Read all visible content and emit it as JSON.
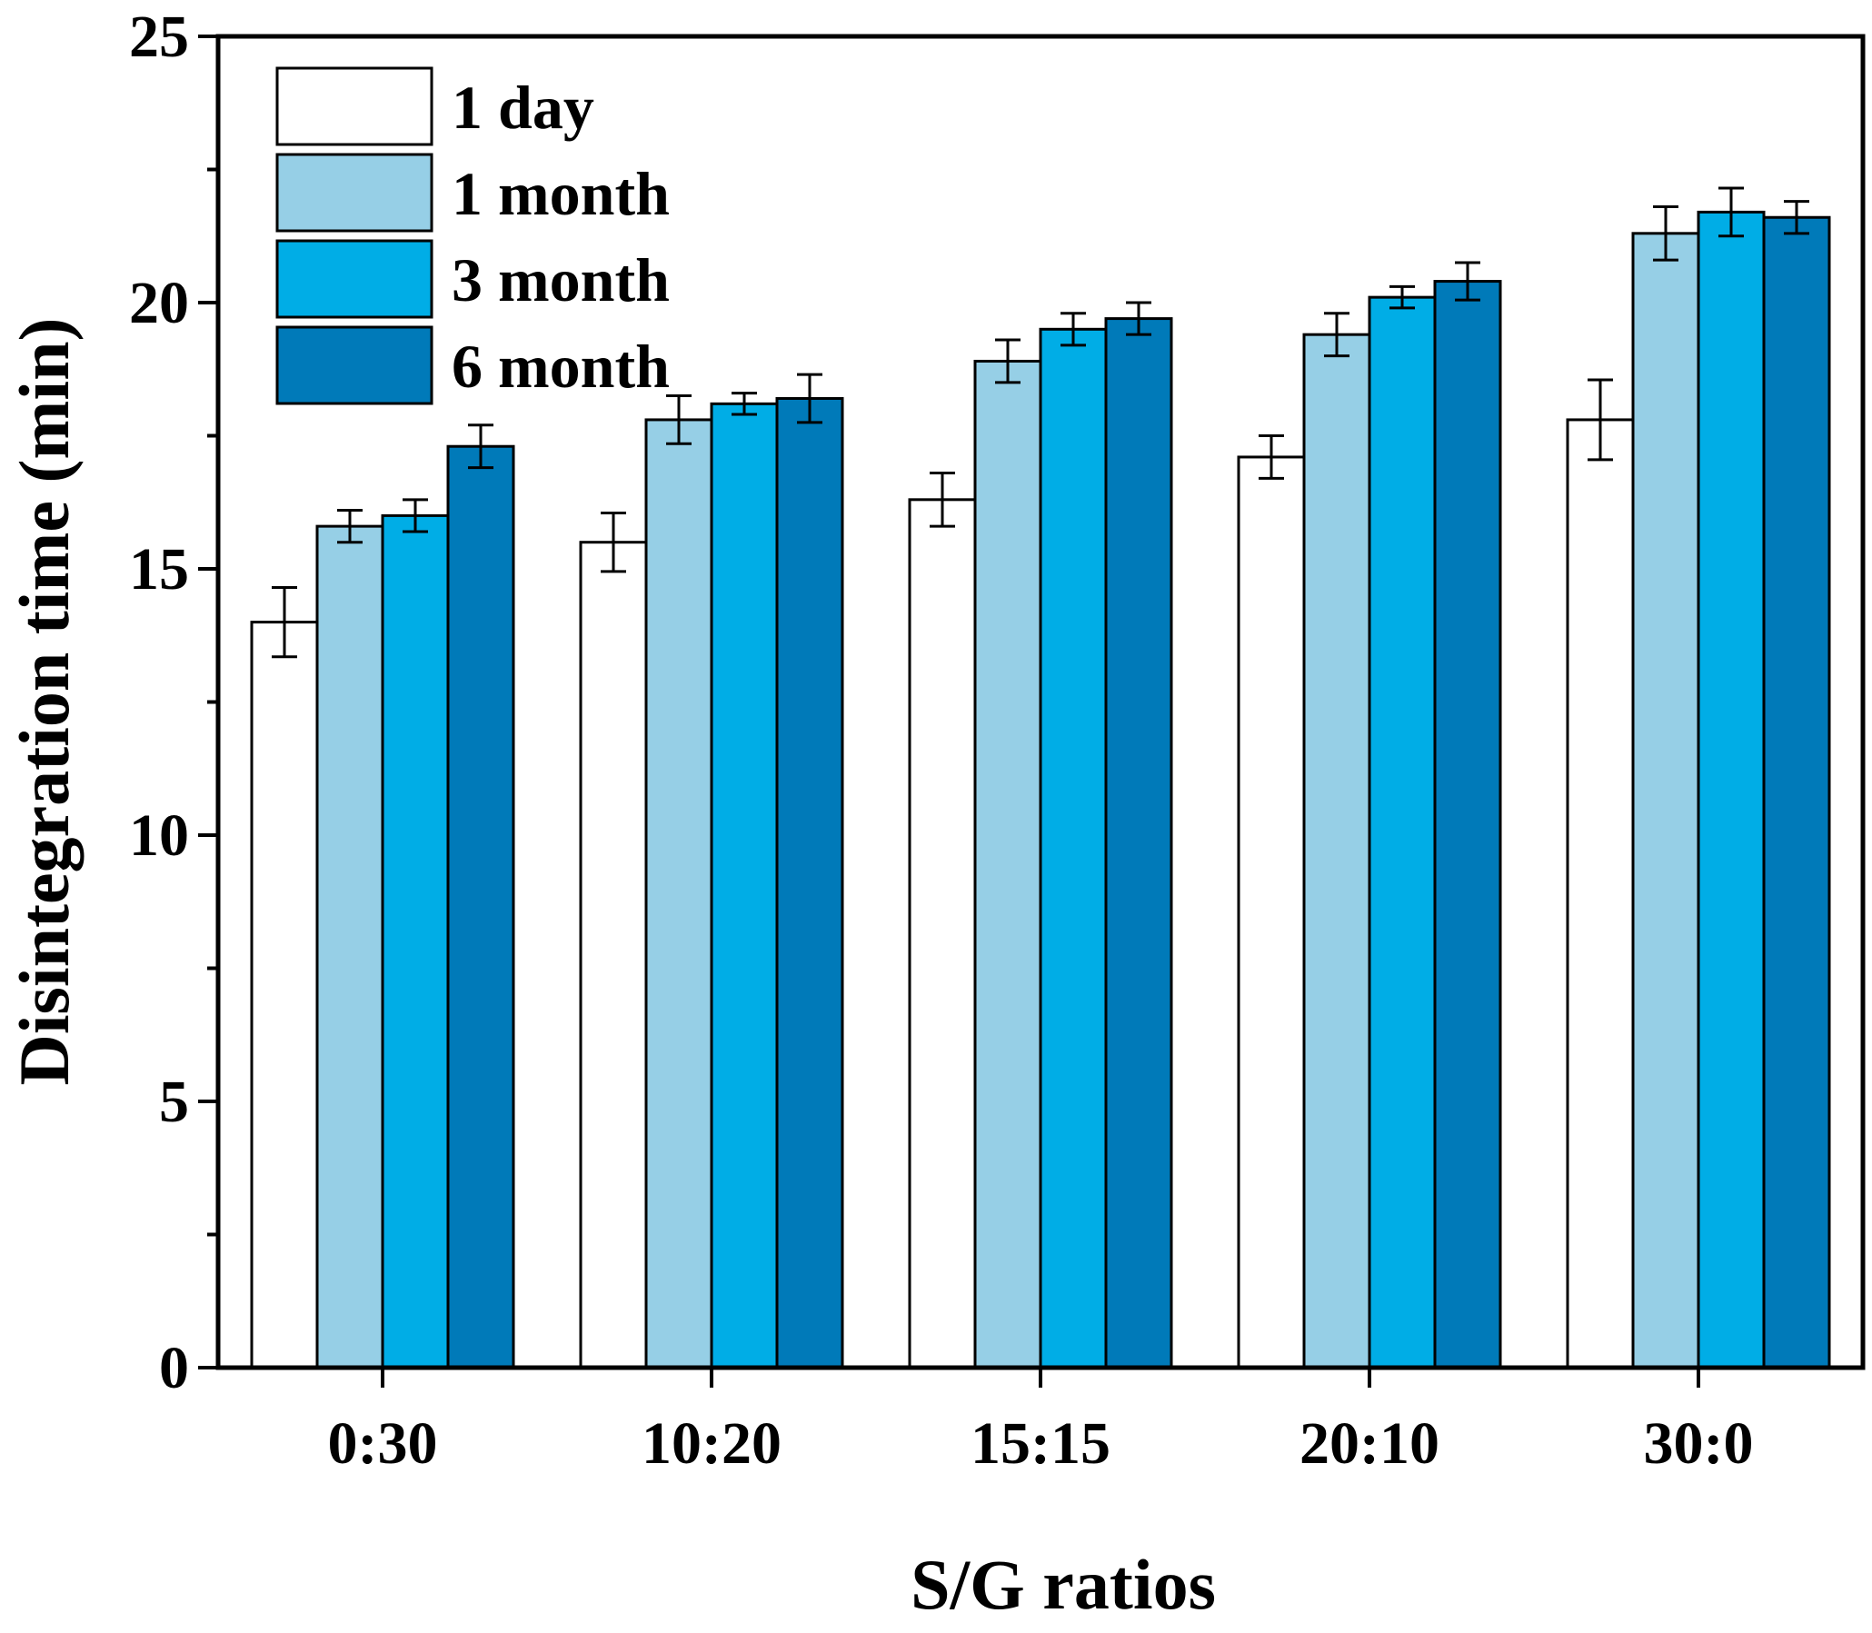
{
  "chart_data": {
    "type": "bar",
    "xlabel": "S/G ratios",
    "ylabel": "Disintegration time (min)",
    "ylim": [
      0,
      25
    ],
    "yticks": [
      0,
      5,
      10,
      15,
      20,
      25
    ],
    "categories": [
      "0:30",
      "10:20",
      "15:15",
      "20:10",
      "30:0"
    ],
    "legend_position": "top-left",
    "grid": false,
    "series": [
      {
        "name": "1 day",
        "color": "#ffffff",
        "values": [
          14.0,
          15.5,
          16.3,
          17.1,
          17.8
        ],
        "errors": [
          0.65,
          0.55,
          0.5,
          0.4,
          0.75
        ]
      },
      {
        "name": "1 month",
        "color": "#96cfe6",
        "values": [
          15.8,
          17.8,
          18.9,
          19.4,
          21.3
        ],
        "errors": [
          0.3,
          0.45,
          0.4,
          0.4,
          0.5
        ]
      },
      {
        "name": "3 month",
        "color": "#00ade6",
        "values": [
          16.0,
          18.1,
          19.5,
          20.1,
          21.7
        ],
        "errors": [
          0.3,
          0.2,
          0.3,
          0.2,
          0.45
        ]
      },
      {
        "name": "6 month",
        "color": "#007ab9",
        "values": [
          17.3,
          18.2,
          19.7,
          20.4,
          21.6
        ],
        "errors": [
          0.4,
          0.45,
          0.3,
          0.35,
          0.3
        ]
      }
    ]
  }
}
